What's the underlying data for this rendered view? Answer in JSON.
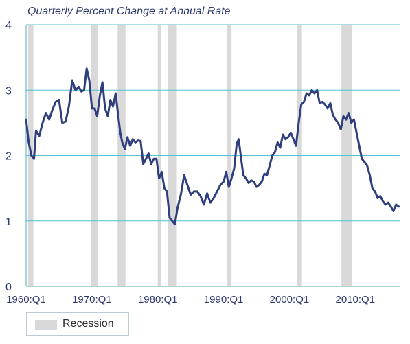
{
  "chart_data": {
    "type": "line",
    "title": "Quarterly Percent Change at Annual Rate",
    "xlabel": "",
    "ylabel": "",
    "xlim": [
      1960.0,
      2016.75
    ],
    "ylim": [
      0,
      4
    ],
    "yticks": [
      0,
      1,
      2,
      3,
      4
    ],
    "xticks": [
      {
        "value": 1960.0,
        "label": "1960:Q1"
      },
      {
        "value": 1970.0,
        "label": "1970:Q1"
      },
      {
        "value": 1980.0,
        "label": "1980:Q1"
      },
      {
        "value": 1990.0,
        "label": "1990:Q1"
      },
      {
        "value": 2000.0,
        "label": "2000:Q1"
      },
      {
        "value": 2010.0,
        "label": "2010:Q1"
      }
    ],
    "grid": true,
    "legend_placement": "bottom-left",
    "recessions": [
      {
        "start": 1960.3,
        "end": 1961.1
      },
      {
        "start": 1969.9,
        "end": 1970.9
      },
      {
        "start": 1973.9,
        "end": 1975.1
      },
      {
        "start": 1980.0,
        "end": 1980.5
      },
      {
        "start": 1981.5,
        "end": 1982.9
      },
      {
        "start": 1990.5,
        "end": 1991.2
      },
      {
        "start": 2001.2,
        "end": 2001.9
      },
      {
        "start": 2007.9,
        "end": 2009.5
      }
    ],
    "legend": {
      "label": "Recession",
      "color": "#d9d9d9"
    },
    "series": [
      {
        "color": "#2f3e7c",
        "x": [
          1960.0,
          1960.4,
          1960.8,
          1961.2,
          1961.5,
          1962.0,
          1962.5,
          1963.0,
          1963.5,
          1964.0,
          1964.5,
          1965.0,
          1965.5,
          1966.0,
          1966.5,
          1967.0,
          1967.5,
          1968.0,
          1968.4,
          1968.8,
          1969.2,
          1969.6,
          1970.0,
          1970.4,
          1970.8,
          1971.2,
          1971.6,
          1972.0,
          1972.4,
          1972.8,
          1973.2,
          1973.6,
          1974.0,
          1974.3,
          1974.6,
          1975.0,
          1975.4,
          1975.8,
          1976.2,
          1976.6,
          1977.0,
          1977.4,
          1977.8,
          1978.2,
          1978.6,
          1979.0,
          1979.4,
          1979.8,
          1980.2,
          1980.6,
          1981.0,
          1981.4,
          1981.8,
          1982.2,
          1982.6,
          1983.0,
          1983.5,
          1984.0,
          1984.5,
          1985.0,
          1985.5,
          1986.0,
          1986.5,
          1987.0,
          1987.5,
          1988.0,
          1988.5,
          1989.0,
          1989.5,
          1990.0,
          1990.4,
          1990.8,
          1991.2,
          1991.6,
          1992.0,
          1992.3,
          1992.6,
          1993.0,
          1993.4,
          1993.8,
          1994.2,
          1994.6,
          1995.0,
          1995.4,
          1995.8,
          1996.2,
          1996.6,
          1997.0,
          1997.4,
          1997.8,
          1998.2,
          1998.6,
          1999.0,
          1999.4,
          1999.8,
          2000.2,
          2000.6,
          2001.0,
          2001.4,
          2001.8,
          2002.2,
          2002.6,
          2003.0,
          2003.4,
          2003.8,
          2004.2,
          2004.6,
          2005.0,
          2005.4,
          2005.8,
          2006.2,
          2006.6,
          2007.0,
          2007.4,
          2007.8,
          2008.2,
          2008.6,
          2009.0,
          2009.4,
          2009.8,
          2010.2,
          2010.6,
          2011.0,
          2011.4,
          2011.8,
          2012.2,
          2012.6,
          2013.0,
          2013.4,
          2013.8,
          2014.2,
          2014.6,
          2015.0,
          2015.4,
          2015.8,
          2016.2,
          2016.6
        ],
        "y": [
          2.55,
          2.2,
          2.0,
          1.95,
          2.38,
          2.3,
          2.5,
          2.65,
          2.55,
          2.7,
          2.82,
          2.85,
          2.5,
          2.52,
          2.75,
          3.15,
          3.0,
          3.05,
          2.98,
          3.0,
          3.33,
          3.15,
          2.72,
          2.72,
          2.6,
          2.92,
          3.12,
          2.72,
          2.6,
          2.85,
          2.75,
          2.95,
          2.6,
          2.35,
          2.2,
          2.1,
          2.28,
          2.15,
          2.25,
          2.2,
          2.23,
          2.22,
          1.87,
          1.95,
          2.03,
          1.87,
          1.95,
          1.95,
          1.65,
          1.75,
          1.5,
          1.45,
          1.05,
          1.0,
          0.95,
          1.2,
          1.4,
          1.7,
          1.55,
          1.4,
          1.45,
          1.45,
          1.38,
          1.25,
          1.42,
          1.28,
          1.35,
          1.45,
          1.55,
          1.6,
          1.75,
          1.52,
          1.65,
          1.8,
          2.18,
          2.25,
          2.0,
          1.7,
          1.65,
          1.58,
          1.62,
          1.6,
          1.52,
          1.55,
          1.6,
          1.72,
          1.7,
          1.85,
          2.0,
          2.05,
          2.2,
          2.12,
          2.32,
          2.25,
          2.28,
          2.35,
          2.25,
          2.15,
          2.5,
          2.78,
          2.82,
          2.95,
          2.92,
          3.0,
          2.95,
          3.0,
          2.8,
          2.82,
          2.78,
          2.72,
          2.8,
          2.62,
          2.55,
          2.5,
          2.4,
          2.6,
          2.55,
          2.65,
          2.5,
          2.55,
          2.35,
          2.15,
          1.95,
          1.9,
          1.85,
          1.7,
          1.5,
          1.45,
          1.35,
          1.38,
          1.3,
          1.25,
          1.28,
          1.22,
          1.15,
          1.25,
          1.22
        ]
      }
    ]
  }
}
